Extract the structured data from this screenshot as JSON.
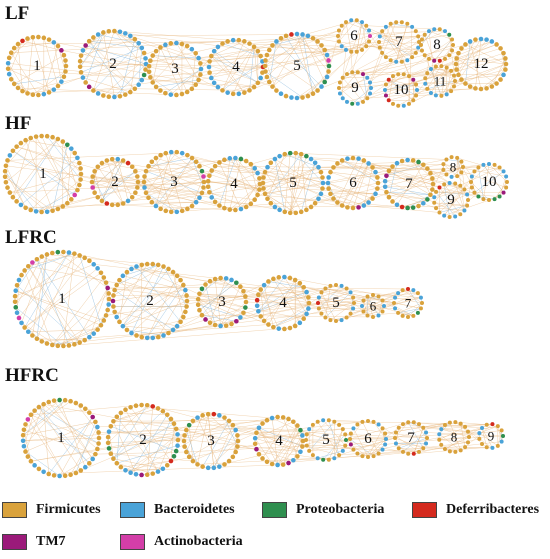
{
  "colors": {
    "firmicutes": "#d9a23c",
    "bacteroidetes": "#4aa3d8",
    "proteobacteria": "#2f8f4f",
    "deferribacteres": "#d42a1e",
    "tm7": "#9b1a7a",
    "actinobacteria": "#d33ea8",
    "edge": "#e7b77f"
  },
  "panels": [
    {
      "key": "lf",
      "label": "LF",
      "modules": [
        "1",
        "2",
        "3",
        "4",
        "5",
        "6",
        "7",
        "8",
        "9",
        "10",
        "11",
        "12"
      ]
    },
    {
      "key": "hf",
      "label": "HF",
      "modules": [
        "1",
        "2",
        "3",
        "4",
        "5",
        "6",
        "7",
        "8",
        "9",
        "10"
      ]
    },
    {
      "key": "lfrc",
      "label": "LFRC",
      "modules": [
        "1",
        "2",
        "3",
        "4",
        "5",
        "6",
        "7"
      ]
    },
    {
      "key": "hfrc",
      "label": "HFRC",
      "modules": [
        "1",
        "2",
        "3",
        "4",
        "5",
        "6",
        "7",
        "8",
        "9"
      ]
    }
  ],
  "legend": [
    {
      "label": "Firmicutes",
      "color_key": "firmicutes"
    },
    {
      "label": "Bacteroidetes",
      "color_key": "bacteroidetes"
    },
    {
      "label": "Proteobacteria",
      "color_key": "proteobacteria"
    },
    {
      "label": "Deferribacteres",
      "color_key": "deferribacteres"
    },
    {
      "label": "TM7",
      "color_key": "tm7"
    },
    {
      "label": "Actinobacteria",
      "color_key": "actinobacteria"
    }
  ]
}
